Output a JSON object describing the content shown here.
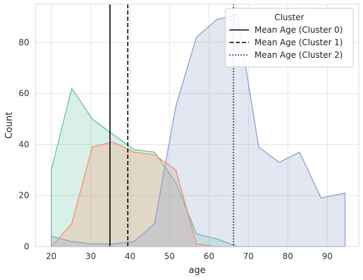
{
  "chart_data": {
    "type": "area",
    "xlabel": "age",
    "ylabel": "Count",
    "xlim": [
      16,
      98
    ],
    "ylim": [
      0,
      95
    ],
    "xticks": [
      "20",
      "30",
      "40",
      "50",
      "60",
      "70",
      "80",
      "90"
    ],
    "yticks": [
      "0",
      "20",
      "40",
      "60",
      "80"
    ],
    "grid": true,
    "legend": {
      "title": "Cluster",
      "placement": "top-right",
      "entries": [
        "Mean Age (Cluster 0)",
        "Mean Age (Cluster 1)",
        "Mean Age (Cluster 2)"
      ]
    },
    "series": [
      {
        "color": "#66c2a5",
        "points": [
          [
            20,
            0
          ],
          [
            20,
            30
          ],
          [
            25.2,
            62
          ],
          [
            30.4,
            50
          ],
          [
            35.6,
            44
          ],
          [
            41,
            38
          ],
          [
            46.2,
            37
          ],
          [
            51.6,
            25
          ],
          [
            56.8,
            5
          ],
          [
            62,
            3
          ],
          [
            67.2,
            0
          ],
          [
            72.6,
            0
          ],
          [
            77.8,
            0
          ],
          [
            83,
            0
          ],
          [
            88.4,
            0
          ],
          [
            94.5,
            0
          ],
          [
            94.5,
            0
          ]
        ]
      },
      {
        "color": "#fc8d62",
        "points": [
          [
            20,
            0
          ],
          [
            20,
            0
          ],
          [
            25.2,
            9
          ],
          [
            30.4,
            39
          ],
          [
            35.6,
            41
          ],
          [
            41,
            37
          ],
          [
            46.2,
            36
          ],
          [
            51.6,
            30
          ],
          [
            56.8,
            1
          ],
          [
            62,
            0
          ],
          [
            67.2,
            0
          ],
          [
            72.6,
            0
          ],
          [
            77.8,
            0
          ],
          [
            83,
            0
          ],
          [
            88.4,
            0
          ],
          [
            94.5,
            0
          ],
          [
            94.5,
            0
          ]
        ]
      },
      {
        "color": "#8da0cb",
        "points": [
          [
            20,
            0
          ],
          [
            20,
            4
          ],
          [
            25.2,
            2
          ],
          [
            30.4,
            1
          ],
          [
            35.6,
            1
          ],
          [
            41,
            2
          ],
          [
            46.2,
            9
          ],
          [
            51.6,
            55
          ],
          [
            56.8,
            82
          ],
          [
            62,
            89
          ],
          [
            67.2,
            91
          ],
          [
            72.6,
            39
          ],
          [
            77.8,
            33
          ],
          [
            83,
            37
          ],
          [
            88.4,
            19
          ],
          [
            94.5,
            21
          ],
          [
            94.5,
            0
          ]
        ]
      }
    ],
    "mean_lines": [
      {
        "x": 34.9,
        "style": "solid"
      },
      {
        "x": 39.4,
        "style": "dashed"
      },
      {
        "x": 66.2,
        "style": "dotted"
      }
    ]
  }
}
